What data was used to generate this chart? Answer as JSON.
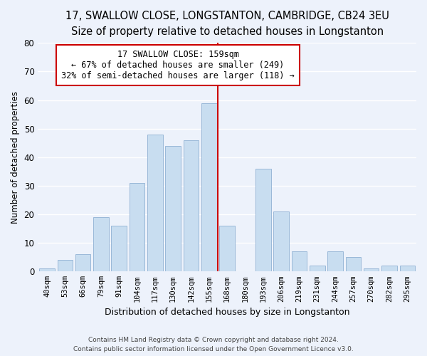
{
  "title_line1": "17, SWALLOW CLOSE, LONGSTANTON, CAMBRIDGE, CB24 3EU",
  "title_line2": "Size of property relative to detached houses in Longstanton",
  "xlabel": "Distribution of detached houses by size in Longstanton",
  "ylabel": "Number of detached properties",
  "bar_labels": [
    "40sqm",
    "53sqm",
    "66sqm",
    "79sqm",
    "91sqm",
    "104sqm",
    "117sqm",
    "130sqm",
    "142sqm",
    "155sqm",
    "168sqm",
    "180sqm",
    "193sqm",
    "206sqm",
    "219sqm",
    "231sqm",
    "244sqm",
    "257sqm",
    "270sqm",
    "282sqm",
    "295sqm"
  ],
  "bar_values": [
    1,
    4,
    6,
    19,
    16,
    31,
    48,
    44,
    46,
    59,
    16,
    0,
    36,
    21,
    7,
    2,
    7,
    5,
    1,
    2,
    2
  ],
  "bar_color": "#c8ddf0",
  "bar_edge_color": "#9ab8d8",
  "vline_index": 10,
  "vline_color": "#cc0000",
  "annotation_title": "17 SWALLOW CLOSE: 159sqm",
  "annotation_line2": "← 67% of detached houses are smaller (249)",
  "annotation_line3": "32% of semi-detached houses are larger (118) →",
  "ylim": [
    0,
    80
  ],
  "yticks": [
    0,
    10,
    20,
    30,
    40,
    50,
    60,
    70,
    80
  ],
  "footer_line1": "Contains HM Land Registry data © Crown copyright and database right 2024.",
  "footer_line2": "Contains public sector information licensed under the Open Government Licence v3.0.",
  "bg_color": "#edf2fb",
  "plot_bg_color": "#edf2fb",
  "grid_color": "#ffffff",
  "title_fontsize": 10.5,
  "subtitle_fontsize": 9.5,
  "annotation_fontsize": 8.5
}
